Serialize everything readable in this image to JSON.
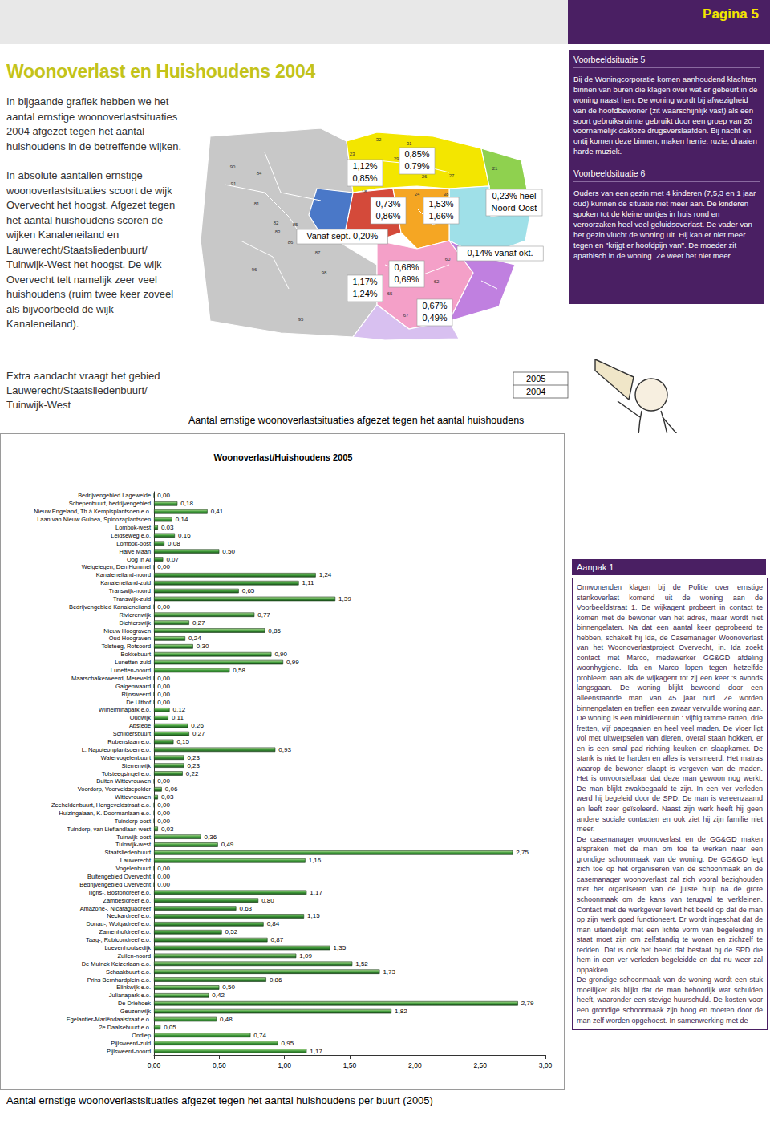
{
  "header": {
    "page": "Pagina 5"
  },
  "title": "Woonoverlast en Huishoudens 2004",
  "intro": [
    "In bijgaande grafiek hebben we het aantal ernstige woonoverlastsituaties 2004 afgezet tegen het aantal huishoudens in de betreffende wijken.",
    "In absolute aantallen ernstige woonoverlastsituaties scoort de wijk Overvecht het hoogst. Afgezet tegen het aantal huishoudens scoren de wijken Kanaleneiland en Lauwerecht/Staatsliedenbuurt/ Tuinwijk-West het hoogst. De wijk Overvecht telt namelijk zeer veel huishoudens (ruim twee keer zoveel als bijvoorbeeld de wijk Kanaleneiland)."
  ],
  "extra_note": "Extra aandacht vraagt het gebied Lauwerecht/Staatsliedenbuurt/ Tuinwijk-West",
  "map": {
    "labels": [
      {
        "lines": [
          "1,12%",
          "0,85%"
        ]
      },
      {
        "lines": [
          "0,85%",
          "0.79%"
        ]
      },
      {
        "lines": [
          "0,73%",
          "0,86%"
        ]
      },
      {
        "lines": [
          "1,53%",
          "1,66%"
        ]
      },
      {
        "lines": [
          "0,23% heel",
          "Noord-Oost"
        ]
      },
      {
        "lines": [
          "Vanaf sept. 0,20%"
        ]
      },
      {
        "lines": [
          "0,14% vanaf okt."
        ]
      },
      {
        "lines": [
          "0,68%",
          "0,69%"
        ]
      },
      {
        "lines": [
          "1,17%",
          "1,24%"
        ]
      },
      {
        "lines": [
          "0,67%",
          "0,49%"
        ]
      }
    ],
    "district_numbers": [
      "23",
      "32",
      "31",
      "29",
      "28",
      "27",
      "26",
      "21",
      "18",
      "24",
      "38",
      "90",
      "84",
      "91",
      "81",
      "82",
      "83",
      "85",
      "86",
      "87",
      "96",
      "98",
      "95",
      "65",
      "67",
      "62",
      "60"
    ],
    "legend": [
      "2005",
      "2004"
    ],
    "caption": "Aantal ernstige woonoverlastsituaties afgezet tegen het aantal huishoudens"
  },
  "sidebar": [
    {
      "heading": "Voorbeeldsituatie 5",
      "text": "Bij de Woningcorporatie komen aanhoudend klachten binnen van buren die klagen over wat er gebeurt in de woning naast hen. De woning wordt bij afwezigheid van de hoofdbewoner (zit waarschijnlijk vast) als een soort gebruiksruimte gebruikt door een groep van 20 voornamelijk dakloze drugsverslaafden. Bij nacht en ontij komen deze binnen, maken herrie, ruzie, draaien harde muziek."
    },
    {
      "heading": "Voorbeeldsituatie 6",
      "text": "Ouders van een gezin met 4 kinderen (7,5,3 en 1 jaar oud) kunnen de situatie niet meer aan. De kinderen spoken tot de kleine uurtjes in huis rond en veroorzaken heel veel geluidsoverlast. De vader van het gezin vlucht de woning uit. Hij kan er niet meer tegen en \"krijgt er hoofdpijn van\". De moeder zit apathisch in de woning. Ze weet het niet meer."
    }
  ],
  "aanpak": {
    "heading": "Aanpak 1",
    "paragraphs": [
      "Omwonenden klagen bij de Politie over ernstige stankoverlast komend uit de woning aan de Voorbeeldstraat 1. De wijkagent probeert in contact te komen met de bewoner van het adres, maar wordt niet binnengelaten. Na dat een aantal keer geprobeerd te hebben, schakelt hij Ida, de Casemanager Woonoverlast van het Woonoverlastproject Overvecht, in. Ida zoekt contact met Marco, medewerker GG&GD afdeling woonhygiene. Ida en Marco lopen tegen hetzelfde probleem aan als de wijkagent tot zij een keer 's avonds langsgaan. De woning blijkt bewoond door een alleenstaande man van 45 jaar oud. Ze worden binnengelaten en treffen een zwaar vervuilde woning aan. De woning is een minidierentuin : vijftig tamme ratten, drie fretten, vijf papegaaien en heel veel maden. De vloer ligt vol met uitwerpselen van dieren, overal staan hokken, er en is een smal pad richting keuken en slaapkamer. De stank is niet te harden en alles is versmeerd. Het matras waarop de bewoner slaapt is vergeven van de maden. Het is onvoorstelbaar dat deze man gewoon nog werkt. De man blijkt zwakbegaafd te zijn. In een ver verleden werd hij begeleid door de SPD. De man is vereenzaamd en leeft zeer geïsoleerd. Naast zijn werk heeft hij geen andere sociale contacten en ook ziet hij zijn familie niet meer.",
      "De casemanager woonoverlast en de GG&GD maken afspraken met de man om toe te werken naar een grondige schoonmaak van de woning. De GG&GD legt zich toe op het organiseren van de schoonmaak en de casemanager woonoverlast zal zich vooral bezighouden met het organiseren van de juiste hulp na de grote schoonmaak om de kans van terugval te verkleinen. Contact met de werkgever levert het beeld op dat de man op zijn werk goed functioneert. Er wordt ingeschat dat de man uiteindelijk met een lichte vorm van begeleiding in staat moet zijn om zelfstandig te wonen en zichzelf te redden. Dat is ook het beeld dat bestaat bij de SPD die hem in een ver verleden begeleidde en dat nu weer zal oppakken.",
      "De grondige schoonmaak van de woning wordt een stuk moeilijker als blijkt dat de man behoorlijk wat schulden heeft, waaronder een stevige huurschuld. De kosten voor een grondige schoonmaak zijn hoog en moeten door de man zelf worden opgehoest. In samenwerking met de"
    ]
  },
  "chart_caption": "Aantal ernstige woonoverlastsituaties afgezet tegen het aantal huishoudens per buurt (2005)",
  "chart_data": {
    "type": "bar",
    "title": "Woonoverlast/Huishoudens 2005",
    "orientation": "horizontal",
    "categories": [
      "Bedrijvengebied Lageweide",
      "Schepenbuurt, bedrijvengebied",
      "Nieuw Engeland, Th.à Kempisplantsoen e.o.",
      "Laan van Nieuw Guinea, Spinozaplantsoen",
      "Lombok-west",
      "Leidseweg e.o.",
      "Lombok-oost",
      "Halve Maan",
      "Oog in Al",
      "Welgelegen, Den Hommel",
      "Kanaleneiland-noord",
      "Kanaleneiland-zuid",
      "Transwijk-noord",
      "Transwijk-zuid",
      "Bedrijvengebied Kanaleneiland",
      "Rivierenwijk",
      "Dichterswijk",
      "Nieuw Hoograven",
      "Oud Hoograven",
      "Tolsteeg, Rotsoord",
      "Bokkebuurt",
      "Lunetten-zuid",
      "Lunetten-noord",
      "Maarschalkerweerd, Mereveld",
      "Galgenwaard",
      "Rijnsweerd",
      "De Uithof",
      "Wilhelminapark e.o.",
      "Oudwijk",
      "Abstede",
      "Schildersbuurt",
      "Rubenslaan e.o.",
      "L. Napoleonplantsoen e.o.",
      "Watervogelenbuurt",
      "Sterrenwijk",
      "Tolsteegsingel e.o.",
      "Buiten Wittevrouwen",
      "Voordorp, Voorveldsepolder",
      "Wittevrouwen",
      "Zeeheldenbuurt, Hengeveldstraat e.o.",
      "Huizingalaan, K. Doormanlaan e.o.",
      "Tuindorp-oost",
      "Tuindorp, van Lieflandlaan-west",
      "Tuinwijk-oost",
      "Tuinwijk-west",
      "Staatsliedenbuurt",
      "Lauwerecht",
      "Vogelenbuurt",
      "Buitengebied Overvecht",
      "Bedrijvengebied Overvecht",
      "Tigris-, Bostondreef e.o.",
      "Zambesidreef e.o.",
      "Amazone-, Nicaraguadreef",
      "Neckardreef e.o.",
      "Donau-, Wolgadreef e.o.",
      "Zamenhofdreef e.o.",
      "Taag-, Rubicondreef e.o.",
      "Loevenhoutsedijk",
      "Zuilen-noord",
      "De Muinck Keizerlaan e.o.",
      "Schaakbuurt e.o.",
      "Prins Bernhardplein e.o.",
      "Elinkwijk e.o.",
      "Julianapark e.o.",
      "De Driehoek",
      "Geuzenwijk",
      "Egelantier-Mariëndaalstraat e.o.",
      "2e Daalsebuurt e.o.",
      "Ondiep",
      "Pijlsweerd-zuid",
      "Pijlsweerd-noord"
    ],
    "values": [
      0.0,
      0.18,
      0.41,
      0.14,
      0.03,
      0.16,
      0.08,
      0.5,
      0.07,
      0.0,
      1.24,
      1.11,
      0.65,
      1.39,
      0.0,
      0.77,
      0.27,
      0.85,
      0.24,
      0.3,
      0.9,
      0.99,
      0.58,
      0.0,
      0.0,
      0.0,
      0.0,
      0.12,
      0.11,
      0.26,
      0.27,
      0.15,
      0.93,
      0.23,
      0.23,
      0.22,
      0.0,
      0.06,
      0.03,
      0.0,
      0.0,
      0.0,
      0.03,
      0.36,
      0.49,
      2.75,
      1.16,
      0.0,
      0.0,
      0.0,
      1.17,
      0.8,
      0.63,
      1.15,
      0.84,
      0.52,
      0.87,
      1.35,
      1.09,
      1.52,
      1.73,
      0.86,
      0.5,
      0.42,
      2.79,
      1.82,
      0.48,
      0.05,
      0.74,
      0.95,
      1.17
    ],
    "value_labels": [
      "0,00",
      "0,18",
      "0,41",
      "0,14",
      "0,03",
      "0,16",
      "0,08",
      "0,50",
      "0,07",
      "0,00",
      "1,24",
      "1,11",
      "0,65",
      "1,39",
      "0,00",
      "0,77",
      "0,27",
      "0,85",
      "0,24",
      "0,30",
      "0,90",
      "0,99",
      "0,58",
      "0,00",
      "0,00",
      "0,00",
      "0,00",
      "0,12",
      "0,11",
      "0,26",
      "0,27",
      "0,15",
      "0,93",
      "0,23",
      "0,23",
      "0,22",
      "0,00",
      "0,06",
      "0,03",
      "0,00",
      "0,00",
      "0,00",
      "0,03",
      "0,36",
      "0,49",
      "2,75",
      "1,16",
      "0,00",
      "0,00",
      "0,00",
      "1,17",
      "0,80",
      "0,63",
      "1,15",
      "0,84",
      "0,52",
      "0,87",
      "1,35",
      "1,09",
      "1,52",
      "1,73",
      "0,86",
      "0,50",
      "0,42",
      "2,79",
      "1,82",
      "0,48",
      "0,05",
      "0,74",
      "0,95",
      "1,17"
    ],
    "color": "#3f9a3a",
    "xlim": [
      0,
      3
    ],
    "xticks": [
      {
        "value": 0,
        "label": "0,00"
      },
      {
        "value": 0.5,
        "label": "0,50"
      },
      {
        "value": 1,
        "label": "1,00"
      },
      {
        "value": 1.5,
        "label": "1,50"
      },
      {
        "value": 2,
        "label": "2,00"
      },
      {
        "value": 2.5,
        "label": "2,50"
      },
      {
        "value": 3,
        "label": "3,00"
      }
    ],
    "grid": false,
    "data_labels": true
  }
}
